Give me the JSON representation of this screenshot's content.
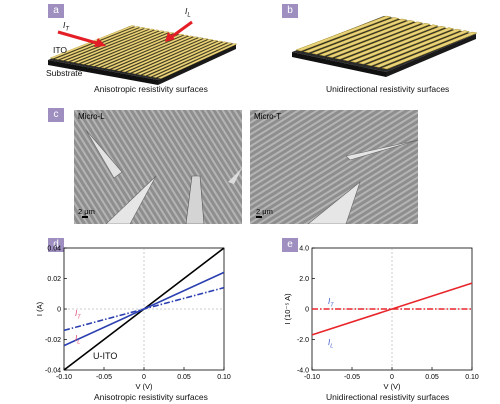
{
  "panels": {
    "a": {
      "badge": "a",
      "arrow_left_label": "I",
      "arrow_left_sub": "T",
      "arrow_right_label": "I",
      "arrow_right_sub": "L",
      "ito_label": "ITO",
      "substrate_label": "Substrate",
      "caption": "Anisotropic resistivity surfaces"
    },
    "b": {
      "badge": "b",
      "caption": "Unidirectional resistivity surfaces"
    },
    "c": {
      "badge": "c",
      "left_label": "Micro-L",
      "right_label": "Micro-T",
      "left_scale": "2 μm",
      "right_scale": "2 μm"
    },
    "d": {
      "badge": "d",
      "caption": "Anisotropic resistivity surfaces",
      "label_IT": "I",
      "label_IT_sub": "T",
      "label_IL": "I",
      "label_IL_sub": "L",
      "label_uito": "U-ITO"
    },
    "e": {
      "badge": "e",
      "caption": "Unidirectional resistivity surfaces",
      "label_IT": "I",
      "label_IT_sub": "T",
      "label_IL": "I",
      "label_IL_sub": "L"
    }
  },
  "colors": {
    "badge": "#9e8fc0",
    "ito_gold": "#e8d27a",
    "substrate": "#2a2a2a",
    "arrow_red": "#e41e26",
    "blue": "#2b3fb0",
    "black": "#000000",
    "red": "#e8252b",
    "label_pink": "#e2446f",
    "label_blue": "#3a5bc7"
  },
  "chart_data": [
    {
      "type": "line",
      "panel": "d",
      "title": "",
      "xlabel": "V (V)",
      "ylabel": "I (A)",
      "xlim": [
        -0.1,
        0.1
      ],
      "ylim": [
        -0.04,
        0.04
      ],
      "xticks": [
        "-0.10",
        "-0.05",
        "0",
        "0.05",
        "0.10"
      ],
      "yticks": [
        "0.04",
        "0.02",
        "0",
        "-0.02",
        "-0.04"
      ],
      "series": [
        {
          "name": "U-ITO",
          "style": "solid",
          "color": "#000000",
          "x": [
            -0.1,
            0.1
          ],
          "y": [
            -0.04,
            0.04
          ]
        },
        {
          "name": "I_L",
          "style": "solid",
          "color": "#2b3fb0",
          "x": [
            -0.1,
            0.1
          ],
          "y": [
            -0.024,
            0.024
          ]
        },
        {
          "name": "I_T",
          "style": "dashdot",
          "color": "#2b3fb0",
          "x": [
            -0.1,
            0.1
          ],
          "y": [
            -0.014,
            0.014
          ]
        }
      ]
    },
    {
      "type": "line",
      "panel": "e",
      "title": "",
      "xlabel": "V (V)",
      "ylabel": "I (10⁻⁵ A)",
      "xlim": [
        -0.1,
        0.1
      ],
      "ylim": [
        -4.0,
        4.0
      ],
      "xticks": [
        "-0.10",
        "-0.05",
        "0",
        "0.05",
        "0.10"
      ],
      "yticks": [
        "4.0",
        "2.0",
        "0",
        "-2.0",
        "-4.0"
      ],
      "series": [
        {
          "name": "I_L",
          "style": "solid",
          "color": "#e8252b",
          "x": [
            -0.1,
            0.1
          ],
          "y": [
            -1.7,
            1.7
          ]
        },
        {
          "name": "I_T",
          "style": "dashdot",
          "color": "#e8252b",
          "x": [
            -0.1,
            0.1
          ],
          "y": [
            0.0,
            0.0
          ]
        }
      ]
    }
  ]
}
